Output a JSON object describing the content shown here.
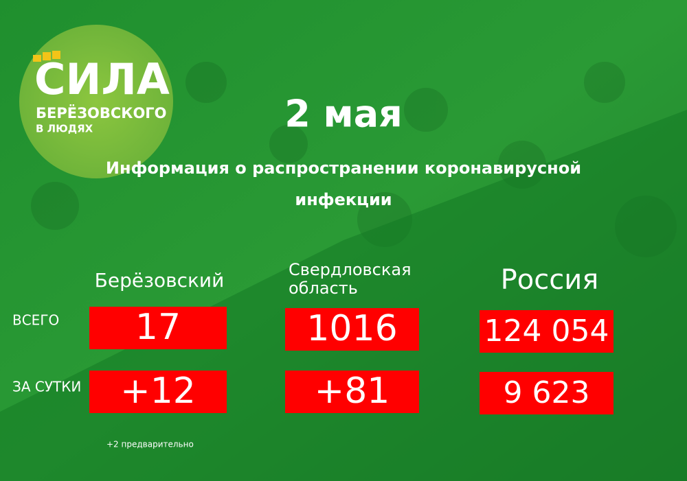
{
  "logo": {
    "title": "СИЛА",
    "subtitle": "БЕРЁЗОВСКОГО",
    "tagline": "В ЛЮДЯХ"
  },
  "date": "2 мая",
  "heading": [
    "Информация о распространении коронавирусной",
    "инфекции"
  ],
  "columns": [
    [
      "Берёзовский"
    ],
    [
      "Свердловская",
      "область"
    ],
    [
      "Россия"
    ]
  ],
  "rows": [
    {
      "label": "ВСЕГО",
      "values": [
        "17",
        "1016",
        "124 054"
      ]
    },
    {
      "label": "ЗА СУТКИ",
      "values": [
        "+12",
        "+81",
        "9 623"
      ]
    }
  ],
  "footnote": "+2 предварительно"
}
